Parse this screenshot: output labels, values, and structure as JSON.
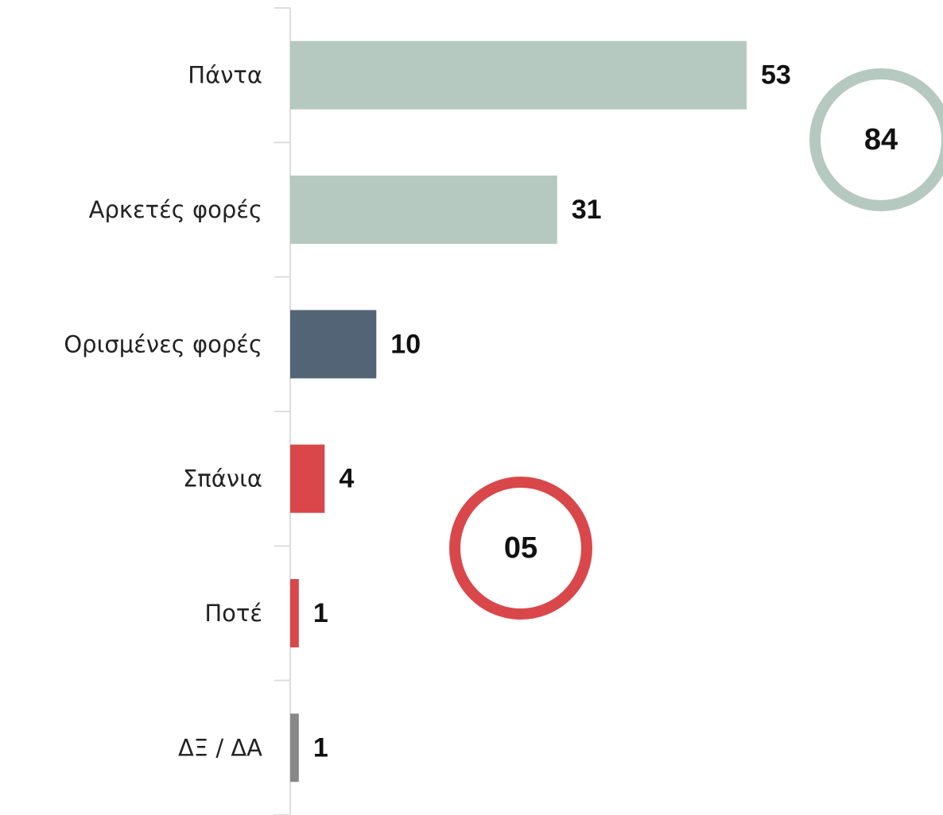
{
  "chart_data": {
    "type": "bar",
    "orientation": "horizontal",
    "categories": [
      "Πάντα",
      "Αρκετές φορές",
      "Ορισμένες φορές",
      "Σπάνια",
      "Ποτέ",
      "ΔΞ / ΔΑ"
    ],
    "values": [
      53,
      31,
      10,
      4,
      1,
      1
    ],
    "colors": [
      "#b5c9c0",
      "#b5c9c0",
      "#546477",
      "#d9474a",
      "#d9474a",
      "#888888"
    ],
    "annotations": [
      {
        "text": "84",
        "color": "#b5c9c0"
      },
      {
        "text": "05",
        "color": "#d9474a"
      }
    ]
  }
}
